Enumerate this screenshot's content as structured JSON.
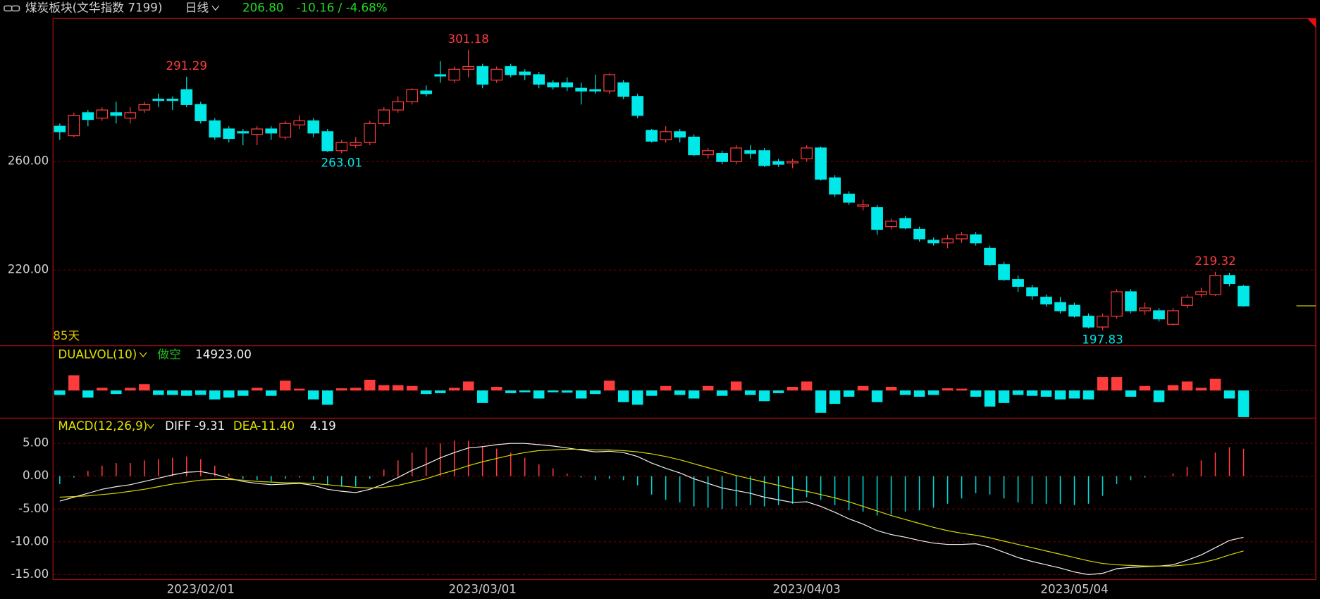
{
  "header": {
    "title": "煤炭板块(文华指数 7199)",
    "period": "日线",
    "last": "206.80",
    "change": "-10.16 / -4.68%"
  },
  "chart_data": [
    {
      "type": "candlestick",
      "days_label": "85天",
      "up_color": "#ff3c3c",
      "down_color": "#00e8e8",
      "categories": [
        null,
        null,
        null,
        null,
        null,
        null,
        null,
        null,
        null,
        null,
        "2023/02/01",
        null,
        null,
        null,
        null,
        null,
        null,
        null,
        null,
        null,
        null,
        null,
        null,
        null,
        null,
        null,
        null,
        null,
        null,
        null,
        "2023/03/01",
        null,
        null,
        null,
        null,
        null,
        null,
        null,
        null,
        null,
        null,
        null,
        null,
        null,
        null,
        null,
        null,
        null,
        null,
        null,
        null,
        null,
        null,
        "2023/04/03",
        null,
        null,
        null,
        null,
        null,
        null,
        null,
        null,
        null,
        null,
        null,
        null,
        null,
        null,
        null,
        null,
        null,
        null,
        "2023/05/04",
        null,
        null,
        null,
        null,
        null,
        null,
        null,
        null,
        null,
        null,
        null,
        null
      ],
      "open": [
        273,
        269.5,
        278,
        276,
        278,
        276,
        279,
        283,
        283,
        286.5,
        281,
        275,
        272,
        271,
        270,
        272,
        269,
        273.5,
        275,
        271,
        264,
        266,
        267,
        274,
        279,
        282,
        286,
        292,
        290,
        294,
        295,
        290,
        295,
        293,
        292,
        289,
        289,
        287,
        286.5,
        286,
        289,
        284,
        271.5,
        268,
        271,
        269,
        262.5,
        263,
        260,
        264,
        264,
        260,
        259.5,
        261,
        265,
        254,
        248,
        243.5,
        243,
        236,
        239,
        235,
        231,
        230,
        231.5,
        233,
        228,
        222,
        216.5,
        213.5,
        210,
        208,
        207,
        203,
        199,
        203,
        212,
        205,
        205,
        200,
        207,
        211,
        211,
        218,
        214
      ],
      "high": [
        274,
        278,
        279,
        280,
        282,
        280,
        282,
        285,
        284,
        291.29,
        282,
        276,
        273,
        272,
        273,
        273,
        275,
        277,
        276,
        272,
        268,
        269,
        275,
        280,
        284,
        287,
        288,
        297,
        295,
        301.18,
        296,
        295,
        296,
        294,
        293,
        290,
        291,
        289,
        292,
        292.5,
        290,
        285,
        272,
        273,
        272,
        270,
        265,
        264,
        266,
        266,
        265,
        261,
        261,
        266,
        265.5,
        255,
        249,
        246,
        244,
        239,
        240,
        236,
        232,
        233,
        234,
        234,
        229,
        223,
        218,
        214.5,
        211,
        210,
        208,
        204,
        204,
        213,
        213,
        208,
        206,
        206,
        211,
        213.5,
        219.32,
        219,
        214.5
      ],
      "low": [
        268,
        269,
        273,
        275,
        274,
        274,
        278,
        280,
        279,
        280,
        274,
        268,
        267,
        266,
        266,
        268,
        268,
        272,
        269,
        263.5,
        263.01,
        265,
        266,
        273,
        278,
        281,
        284,
        289,
        289,
        291,
        287,
        289,
        291,
        290,
        287,
        286.5,
        286,
        281,
        285,
        285,
        283,
        276,
        267,
        267,
        267,
        262,
        261,
        259,
        259,
        261,
        258,
        258,
        257.5,
        260,
        253,
        247,
        244,
        242,
        233,
        235,
        235,
        230.5,
        229,
        228,
        230,
        229,
        221.5,
        216,
        212,
        209,
        206.5,
        204,
        202.5,
        198.5,
        197.83,
        202,
        204,
        203.5,
        201,
        199.5,
        206,
        210,
        210.5,
        214,
        206.5
      ],
      "close": [
        271,
        277,
        275.5,
        279,
        277,
        278,
        281,
        282.5,
        282.5,
        281,
        275,
        269,
        268.5,
        270.5,
        272,
        270.5,
        274,
        275,
        270.5,
        264,
        267,
        267,
        274,
        279,
        282,
        286.5,
        285,
        291.5,
        294,
        295,
        288.5,
        294,
        292,
        292,
        288.5,
        287.5,
        287.5,
        286,
        286,
        292,
        284,
        277,
        267.5,
        271,
        269,
        262.5,
        264,
        260,
        265,
        263,
        258.5,
        259,
        260,
        265,
        253.5,
        248,
        245,
        244,
        235,
        238,
        235.5,
        231.5,
        230,
        231.5,
        233,
        230,
        222,
        216.5,
        214,
        210.5,
        207.5,
        205,
        203,
        199,
        203,
        212,
        205,
        206,
        202,
        205,
        210,
        212,
        218,
        215,
        206.8
      ],
      "annotations": [
        {
          "x": 9,
          "y": 291.29
        },
        {
          "x": 29,
          "y": 301.18
        },
        {
          "x": 20,
          "y": 263.01
        },
        {
          "x": 74,
          "y": 197.83
        },
        {
          "x": 82,
          "y": 219.32
        }
      ],
      "ylim": [
        192.4,
        312.71
      ],
      "yticks": [
        {
          "value": 260,
          "label": "260.00"
        },
        {
          "value": 220,
          "label": "220.00"
        }
      ],
      "grid": true
    },
    {
      "type": "dualvol",
      "title": "DUALVOL(10)",
      "mode": "做空",
      "values": [
        2500,
        8500,
        4000,
        1500,
        2000,
        1500,
        3500,
        2500,
        2500,
        3000,
        2500,
        5000,
        4000,
        3000,
        1500,
        3000,
        5500,
        1000,
        5000,
        8000,
        1200,
        1500,
        6000,
        3000,
        3000,
        2500,
        2000,
        1500,
        1500,
        5000,
        7000,
        2000,
        1500,
        1000,
        4500,
        1000,
        1200,
        4500,
        2000,
        5500,
        6500,
        8000,
        3000,
        2500,
        2500,
        4500,
        2500,
        3000,
        5000,
        2500,
        6000,
        1500,
        2000,
        5000,
        12500,
        7500,
        3500,
        2500,
        6500,
        2000,
        2500,
        3500,
        2500,
        1200,
        1000,
        3500,
        9000,
        7000,
        2500,
        3000,
        3500,
        5000,
        4500,
        5000,
        7500,
        7500,
        3500,
        2500,
        6500,
        3000,
        5000,
        1500,
        6500,
        4500,
        14923
      ],
      "value_label": "14923.00",
      "ylim": [
        -15000,
        25000
      ]
    },
    {
      "type": "macd",
      "title": "MACD(12,26,9)",
      "series": [
        {
          "name": "DIFF",
          "color": "#f0f0f0",
          "last_label": "-9.31",
          "values": [
            -3.8,
            -3.2,
            -2.6,
            -2.0,
            -1.6,
            -1.3,
            -0.8,
            -0.3,
            0.2,
            0.6,
            0.7,
            0.3,
            -0.3,
            -0.8,
            -1.1,
            -1.3,
            -1.2,
            -1.1,
            -1.4,
            -2.0,
            -2.3,
            -2.5,
            -2.0,
            -1.2,
            -0.2,
            0.9,
            1.8,
            2.8,
            3.6,
            4.3,
            4.5,
            4.8,
            5.0,
            5.0,
            4.8,
            4.6,
            4.3,
            4.0,
            3.7,
            3.8,
            3.6,
            3.0,
            2.0,
            1.2,
            0.5,
            -0.4,
            -1.1,
            -1.8,
            -2.2,
            -2.6,
            -3.2,
            -3.6,
            -4.0,
            -3.9,
            -4.6,
            -5.5,
            -6.5,
            -7.3,
            -8.3,
            -8.9,
            -9.3,
            -9.8,
            -10.2,
            -10.4,
            -10.4,
            -10.3,
            -10.8,
            -11.6,
            -12.4,
            -13.0,
            -13.5,
            -14.0,
            -14.6,
            -15.0,
            -14.8,
            -14.1,
            -13.9,
            -13.8,
            -13.7,
            -13.5,
            -12.8,
            -12.0,
            -10.9,
            -9.8,
            -9.31
          ]
        },
        {
          "name": "DEA",
          "color": "#d8d800",
          "last_label": "-11.40",
          "values": [
            -3.2,
            -3.1,
            -3.0,
            -2.8,
            -2.6,
            -2.3,
            -2.0,
            -1.6,
            -1.2,
            -0.9,
            -0.6,
            -0.5,
            -0.5,
            -0.6,
            -0.8,
            -0.9,
            -1.0,
            -1.0,
            -1.1,
            -1.3,
            -1.5,
            -1.7,
            -1.8,
            -1.7,
            -1.4,
            -0.9,
            -0.4,
            0.3,
            0.9,
            1.6,
            2.2,
            2.7,
            3.2,
            3.6,
            3.9,
            4.0,
            4.1,
            4.1,
            4.0,
            4.0,
            3.9,
            3.7,
            3.4,
            3.0,
            2.5,
            1.9,
            1.3,
            0.7,
            0.1,
            -0.4,
            -0.9,
            -1.4,
            -1.9,
            -2.3,
            -2.8,
            -3.3,
            -3.9,
            -4.6,
            -5.3,
            -6.0,
            -6.6,
            -7.2,
            -7.8,
            -8.3,
            -8.7,
            -9.0,
            -9.4,
            -9.9,
            -10.4,
            -10.9,
            -11.4,
            -11.9,
            -12.4,
            -12.9,
            -13.3,
            -13.5,
            -13.6,
            -13.7,
            -13.7,
            -13.7,
            -13.5,
            -13.2,
            -12.7,
            -12.0,
            -11.4
          ]
        }
      ],
      "histogram": {
        "up_color": "#ff3c3c",
        "down_color": "#00d8d8",
        "values": [
          -1.2,
          -0.2,
          0.8,
          1.6,
          2.0,
          2.0,
          2.4,
          2.6,
          2.8,
          3.0,
          2.6,
          1.6,
          0.4,
          -0.4,
          -0.6,
          -0.8,
          -0.4,
          -0.2,
          -0.6,
          -1.4,
          -1.6,
          -1.6,
          -0.4,
          1.0,
          2.4,
          3.6,
          4.4,
          5.0,
          5.4,
          5.4,
          4.6,
          4.2,
          3.6,
          2.8,
          1.8,
          1.2,
          0.4,
          -0.2,
          -0.6,
          -0.4,
          -0.6,
          -1.4,
          -2.8,
          -3.6,
          -4.0,
          -4.6,
          -4.8,
          -5.0,
          -4.6,
          -4.4,
          -4.6,
          -4.4,
          -4.2,
          -3.2,
          -3.6,
          -4.4,
          -5.2,
          -5.4,
          -6.0,
          -5.8,
          -5.4,
          -5.2,
          -4.8,
          -4.2,
          -3.4,
          -2.6,
          -2.8,
          -3.4,
          -4.0,
          -4.2,
          -4.2,
          -4.2,
          -4.4,
          -4.2,
          -3.0,
          -1.2,
          -0.6,
          -0.2,
          0,
          0.4,
          1.4,
          2.4,
          3.6,
          4.4,
          4.19
        ]
      },
      "ylim": [
        -15.77,
        8.85
      ],
      "yticks": [
        {
          "value": 5,
          "label": "5.00"
        },
        {
          "value": 0,
          "label": "0.00"
        },
        {
          "value": -5,
          "label": "-5.00"
        },
        {
          "value": -10,
          "label": "-10.00"
        },
        {
          "value": -15,
          "label": "-15.00"
        }
      ],
      "grid": true
    }
  ]
}
